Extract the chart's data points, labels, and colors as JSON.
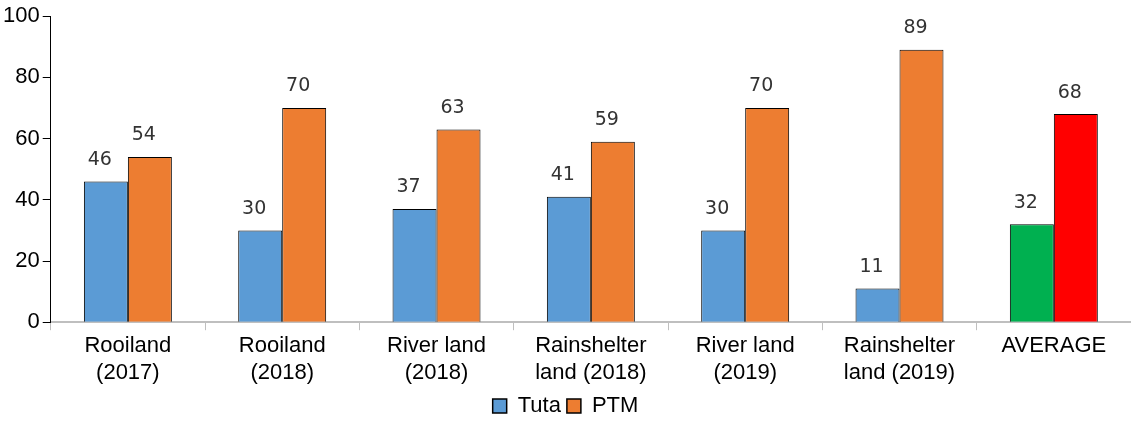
{
  "chart_data": {
    "type": "bar",
    "categories": [
      "Rooiland (2017)",
      "Rooiland (2018)",
      "River land (2018)",
      "Rainshelter land (2018)",
      "River land (2019)",
      "Rainshelter land (2019)",
      "AVERAGE"
    ],
    "series": [
      {
        "name": "Tuta",
        "color": "#5b9bd5",
        "colors": [
          "#5b9bd5",
          "#5b9bd5",
          "#5b9bd5",
          "#5b9bd5",
          "#5b9bd5",
          "#5b9bd5",
          "#00b050"
        ],
        "values": [
          46,
          30,
          37,
          41,
          30,
          11,
          32
        ]
      },
      {
        "name": "PTM",
        "color": "#ed7d31",
        "colors": [
          "#ed7d31",
          "#ed7d31",
          "#ed7d31",
          "#ed7d31",
          "#ed7d31",
          "#ed7d31",
          "#ff0000"
        ],
        "values": [
          54,
          70,
          63,
          59,
          70,
          89,
          68
        ]
      }
    ],
    "ylim": [
      0,
      100
    ],
    "yticks": [
      0,
      20,
      40,
      60,
      80,
      100
    ],
    "grid": false,
    "legend": "bottom",
    "data_labels": true
  }
}
